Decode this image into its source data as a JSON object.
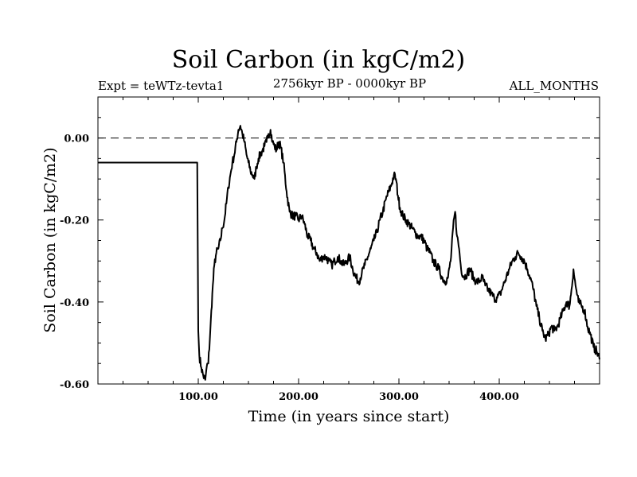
{
  "chart_data": {
    "type": "line",
    "title": "Soil Carbon (in kgC/m2)",
    "subtitle_left": "Expt = teWTz-tevta1",
    "subtitle_center": "2756kyr BP - 0000kyr BP",
    "subtitle_right": "ALL_MONTHS",
    "xlabel": "Time (in years since start)",
    "ylabel": "Soil Carbon (in kgC/m2)",
    "xlim": [
      0,
      500
    ],
    "ylim": [
      -0.6,
      0.1
    ],
    "xticks": [
      100,
      200,
      300,
      400
    ],
    "xtick_labels": [
      "100.00",
      "200.00",
      "300.00",
      "400.00"
    ],
    "yticks": [
      0.0,
      -0.2,
      -0.4,
      -0.6
    ],
    "ytick_labels": [
      "0.00",
      "-0.20",
      "-0.40",
      "-0.60"
    ],
    "reference_line": {
      "y": 0.0,
      "style": "dashed"
    },
    "series": [
      {
        "name": "Soil Carbon",
        "x": [
          0,
          99,
          100,
          101,
          103,
          105,
          107,
          109,
          110,
          112,
          114,
          116,
          118,
          120,
          122,
          124,
          126,
          128,
          130,
          132,
          134,
          136,
          138,
          140,
          142,
          144,
          146,
          148,
          150,
          152,
          154,
          156,
          158,
          160,
          162,
          164,
          166,
          168,
          170,
          172,
          174,
          176,
          178,
          180,
          182,
          185,
          188,
          191,
          194,
          197,
          200,
          203,
          206,
          209,
          212,
          215,
          218,
          221,
          224,
          227,
          230,
          233,
          236,
          239,
          242,
          245,
          248,
          251,
          254,
          257,
          260,
          263,
          266,
          269,
          272,
          275,
          278,
          281,
          284,
          287,
          290,
          293,
          295,
          297,
          299,
          301,
          304,
          307,
          310,
          313,
          316,
          319,
          322,
          325,
          328,
          331,
          334,
          337,
          340,
          343,
          346,
          349,
          352,
          354,
          356,
          358,
          360,
          362,
          365,
          368,
          371,
          374,
          377,
          380,
          383,
          386,
          389,
          392,
          395,
          398,
          401,
          404,
          407,
          410,
          413,
          416,
          419,
          422,
          425,
          428,
          431,
          434,
          437,
          440,
          443,
          446,
          449,
          452,
          455,
          458,
          461,
          464,
          467,
          470,
          472,
          474,
          476,
          479,
          482,
          485,
          488,
          491,
          494,
          497,
          500
        ],
        "values": [
          -0.06,
          -0.06,
          -0.47,
          -0.53,
          -0.56,
          -0.58,
          -0.59,
          -0.55,
          -0.55,
          -0.47,
          -0.38,
          -0.31,
          -0.28,
          -0.27,
          -0.25,
          -0.22,
          -0.2,
          -0.16,
          -0.12,
          -0.09,
          -0.06,
          -0.04,
          -0.01,
          0.02,
          0.03,
          0.01,
          -0.01,
          -0.04,
          -0.06,
          -0.08,
          -0.09,
          -0.1,
          -0.07,
          -0.05,
          -0.04,
          -0.03,
          -0.02,
          -0.01,
          0.01,
          0.02,
          -0.01,
          -0.02,
          -0.03,
          -0.01,
          -0.02,
          -0.06,
          -0.13,
          -0.18,
          -0.19,
          -0.19,
          -0.2,
          -0.19,
          -0.21,
          -0.24,
          -0.25,
          -0.27,
          -0.28,
          -0.3,
          -0.29,
          -0.29,
          -0.3,
          -0.31,
          -0.3,
          -0.29,
          -0.3,
          -0.31,
          -0.3,
          -0.29,
          -0.32,
          -0.34,
          -0.35,
          -0.33,
          -0.31,
          -0.29,
          -0.27,
          -0.25,
          -0.23,
          -0.2,
          -0.18,
          -0.15,
          -0.13,
          -0.11,
          -0.09,
          -0.1,
          -0.14,
          -0.17,
          -0.19,
          -0.2,
          -0.21,
          -0.22,
          -0.23,
          -0.24,
          -0.24,
          -0.25,
          -0.27,
          -0.28,
          -0.3,
          -0.31,
          -0.32,
          -0.34,
          -0.35,
          -0.34,
          -0.29,
          -0.22,
          -0.18,
          -0.24,
          -0.27,
          -0.32,
          -0.34,
          -0.33,
          -0.32,
          -0.34,
          -0.35,
          -0.35,
          -0.34,
          -0.36,
          -0.37,
          -0.38,
          -0.39,
          -0.39,
          -0.38,
          -0.36,
          -0.34,
          -0.32,
          -0.3,
          -0.29,
          -0.28,
          -0.29,
          -0.3,
          -0.32,
          -0.34,
          -0.37,
          -0.41,
          -0.44,
          -0.47,
          -0.49,
          -0.48,
          -0.46,
          -0.47,
          -0.46,
          -0.44,
          -0.42,
          -0.4,
          -0.41,
          -0.37,
          -0.32,
          -0.36,
          -0.4,
          -0.41,
          -0.42,
          -0.46,
          -0.48,
          -0.51,
          -0.52,
          -0.54
        ]
      }
    ]
  }
}
